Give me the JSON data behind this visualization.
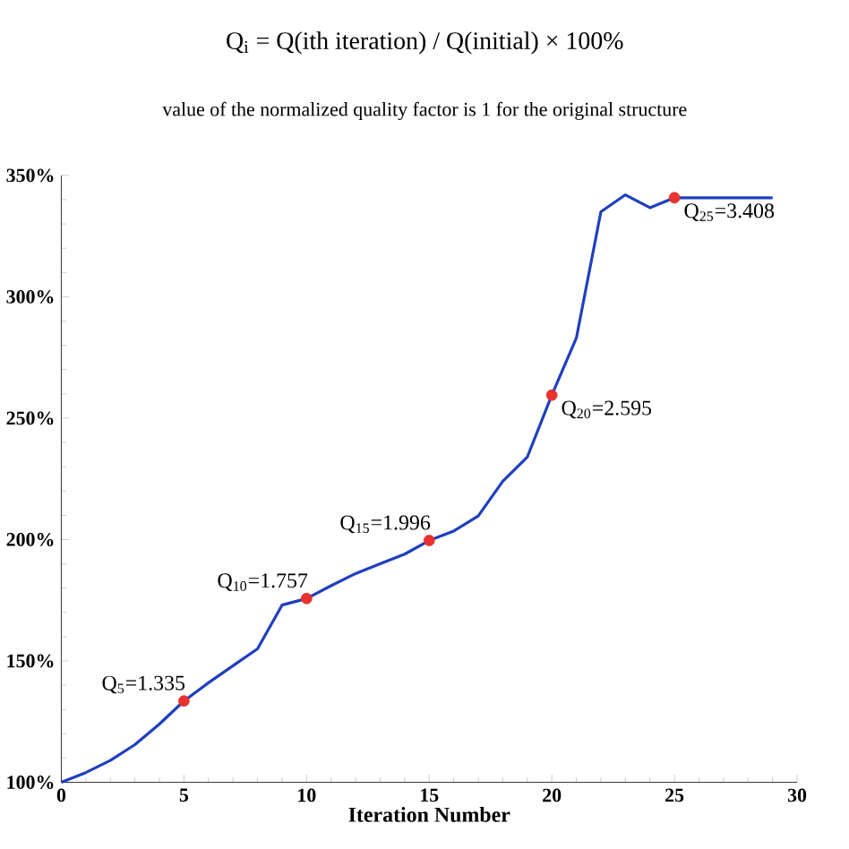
{
  "chart_data": {
    "type": "line",
    "xlabel": "Iteration Number",
    "xlim": [
      0,
      30
    ],
    "xticks": [
      0,
      5,
      10,
      15,
      20,
      25,
      30
    ],
    "ylim": [
      100,
      350
    ],
    "yticks": [
      {
        "value": 100,
        "label": "100%"
      },
      {
        "value": 150,
        "label": "150%"
      },
      {
        "value": 200,
        "label": "200%"
      },
      {
        "value": 250,
        "label": "250%"
      },
      {
        "value": 300,
        "label": "300%"
      },
      {
        "value": 350,
        "label": "350%"
      }
    ],
    "series": [
      {
        "color": "#1f3fbf",
        "marker": "none",
        "x": [
          0,
          1,
          2,
          3,
          4,
          5,
          6,
          7,
          8,
          9,
          10,
          11,
          12,
          13,
          14,
          15,
          16,
          17,
          18,
          19,
          20,
          21,
          22,
          23,
          24,
          25,
          29
        ],
        "values": [
          100,
          104,
          109,
          115.5,
          124,
          133.5,
          141,
          148,
          155,
          173,
          175.7,
          181,
          186,
          190,
          194,
          199.6,
          203.5,
          209.7,
          224,
          234,
          259.5,
          283,
          335,
          342,
          336.7,
          340.8,
          340.8
        ]
      },
      {
        "type": "scatter",
        "color": "#e8322f",
        "marker": "circle",
        "x": [
          5,
          10,
          15,
          20,
          25
        ],
        "values": [
          133.5,
          175.7,
          199.6,
          259.5,
          340.8
        ]
      }
    ],
    "annotations": [
      "Q$_{i}$ = Q(ith iteration) / Q(initial) × 100%",
      "value of the normalized quality factor is 1 for the original structure",
      {
        "text": "Q$_{5}$=1.335",
        "x": 5,
        "y": 133.5
      },
      {
        "text": "Q$_{10}$=1.757",
        "x": 10,
        "y": 175.7
      },
      {
        "text": "Q$_{15}$=1.996",
        "x": 15,
        "y": 199.6
      },
      {
        "text": "Q$_{20}$=2.595",
        "x": 20,
        "y": 259.5
      },
      {
        "text": "Q$_{25}$=3.408",
        "x": 25,
        "y": 340.8
      }
    ]
  }
}
